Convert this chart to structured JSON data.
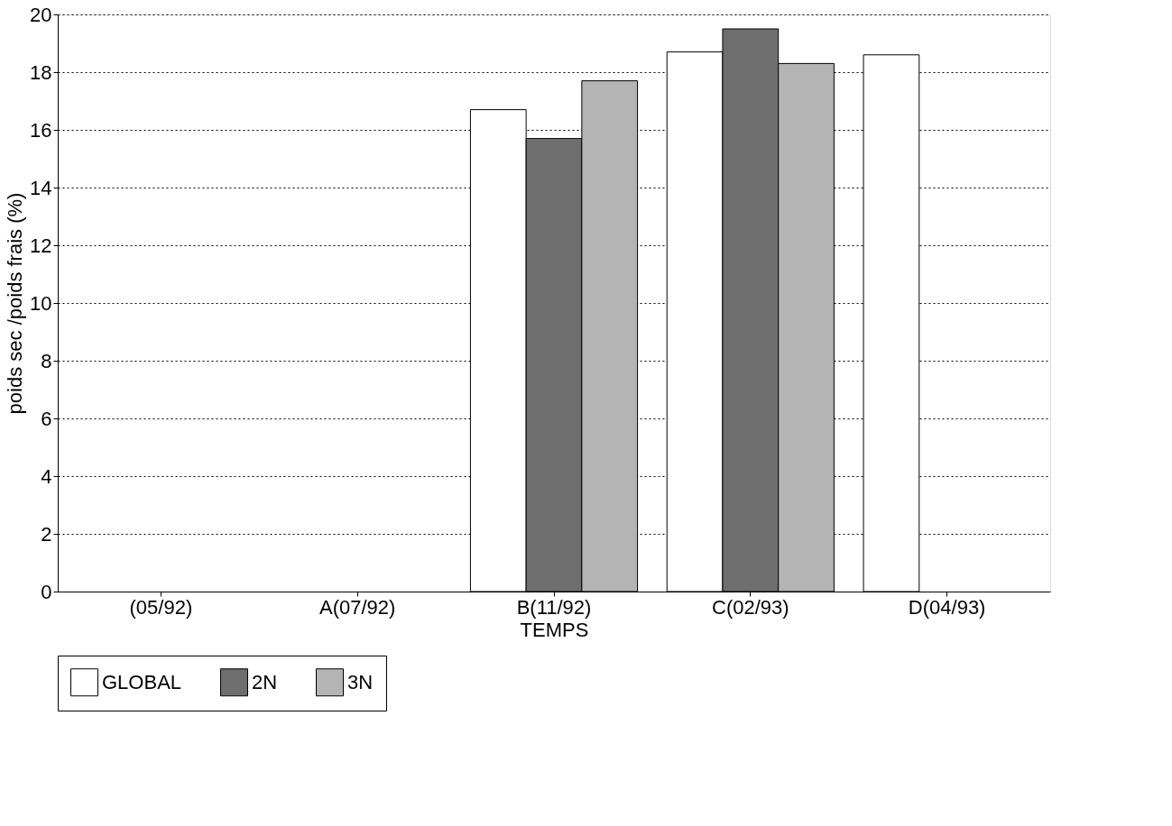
{
  "chart_data": {
    "type": "bar",
    "xlabel": "TEMPS",
    "ylabel": "poids sec /poids frais (%)",
    "categories": [
      "(05/92)",
      "A(07/92)",
      "B(11/92)",
      "C(02/93)",
      "D(04/93)"
    ],
    "series": [
      {
        "name": "GLOBAL",
        "color": "#ffffff",
        "values": [
          null,
          null,
          16.7,
          18.7,
          18.6
        ]
      },
      {
        "name": "2N",
        "color": "#6e6e6e",
        "values": [
          null,
          null,
          15.7,
          19.5,
          null
        ]
      },
      {
        "name": "3N",
        "color": "#b4b4b4",
        "values": [
          null,
          null,
          17.7,
          18.3,
          null
        ]
      }
    ],
    "ylim": [
      0,
      20
    ],
    "yticks": [
      0,
      2,
      4,
      6,
      8,
      10,
      12,
      14,
      16,
      18,
      20
    ],
    "grid": "y",
    "legend": "bottom"
  }
}
